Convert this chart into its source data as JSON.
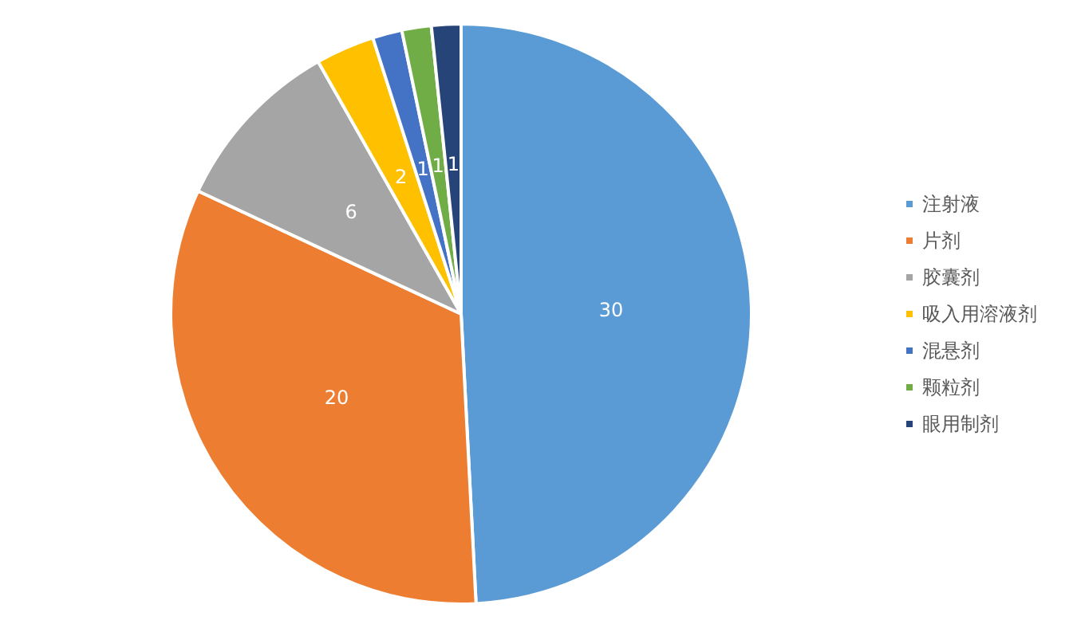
{
  "chart_data": {
    "type": "pie",
    "categories": [
      "注射液",
      "片剂",
      "胶囊剂",
      "吸入用溶液剂",
      "混悬剂",
      "颗粒剂",
      "眼用制剂"
    ],
    "values": [
      30,
      20,
      6,
      2,
      1,
      1,
      1
    ],
    "colors": [
      "#5b9bd5",
      "#ed7d31",
      "#a5a5a5",
      "#ffc000",
      "#4472c4",
      "#70ad47",
      "#264478"
    ],
    "data_labels": true,
    "legend": "right"
  }
}
